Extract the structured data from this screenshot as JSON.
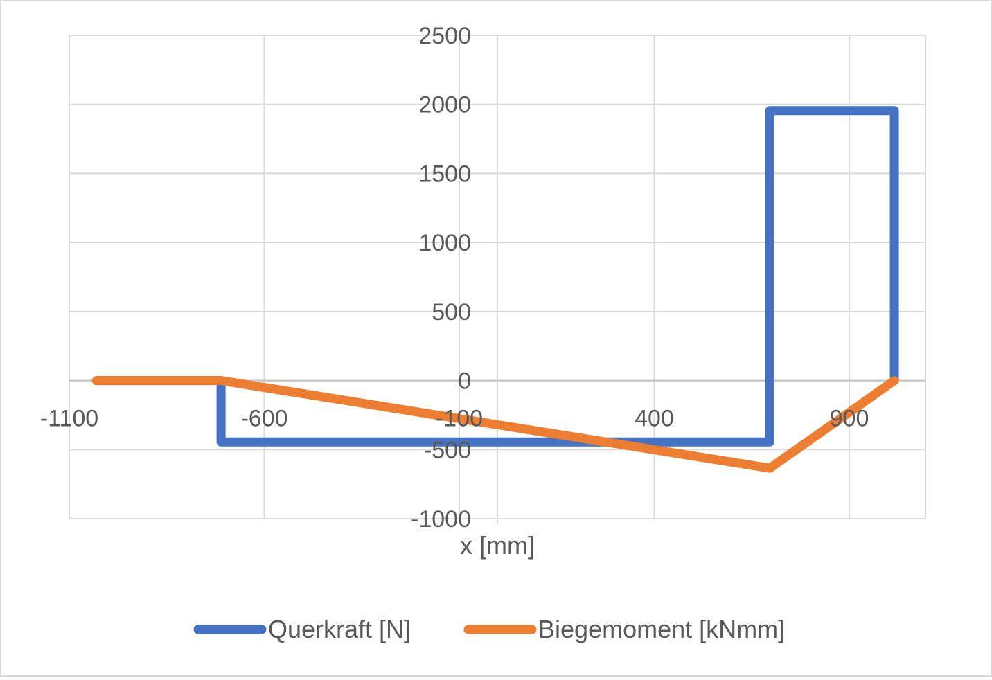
{
  "chart_data": {
    "type": "line",
    "title": "",
    "xlabel": "x [mm]",
    "ylabel": "",
    "xlim": [
      -1100,
      1100
    ],
    "ylim": [
      -1000,
      2500
    ],
    "x_ticks": [
      -1100,
      -600,
      -100,
      400,
      900
    ],
    "y_ticks": [
      -1000,
      -500,
      0,
      500,
      1000,
      1500,
      2000,
      2500
    ],
    "x_tick_labels": [
      "-1100",
      "-600",
      "-100",
      "400",
      "900"
    ],
    "y_tick_labels": [
      "-1000",
      "-500",
      "0",
      "500",
      "1000",
      "1500",
      "2000",
      "2500"
    ],
    "grid": true,
    "legend_position": "bottom",
    "series": [
      {
        "name": "Querkraft [N]",
        "color": "#4472C4",
        "points": [
          [
            -1030,
            0
          ],
          [
            -710,
            0
          ],
          [
            -710,
            -445
          ],
          [
            700,
            -445
          ],
          [
            700,
            1955
          ],
          [
            1020,
            1955
          ],
          [
            1020,
            0
          ]
        ]
      },
      {
        "name": "Biegemoment [kNmm]",
        "color": "#ED7D31",
        "points": [
          [
            -1030,
            0
          ],
          [
            -710,
            0
          ],
          [
            700,
            -635
          ],
          [
            1020,
            0
          ]
        ]
      }
    ]
  }
}
